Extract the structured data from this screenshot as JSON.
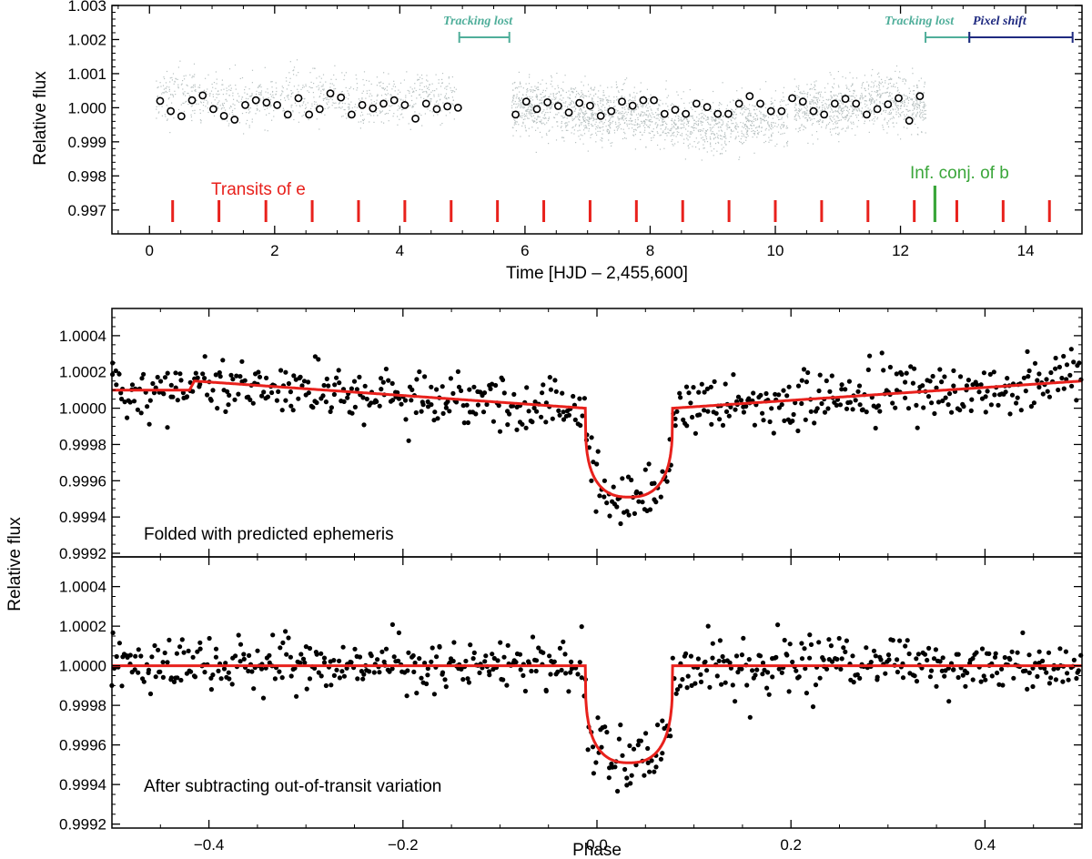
{
  "chart_data": [
    {
      "type": "scatter",
      "panel": "top",
      "xlabel": "Time [HJD – 2,455,600]",
      "ylabel": "Relative flux",
      "xlim": [
        -0.6,
        14.9
      ],
      "ylim": [
        0.9963,
        1.003
      ],
      "x_ticks": [
        0,
        2,
        4,
        6,
        8,
        10,
        12,
        14
      ],
      "x_tick_labels": [
        "0",
        "2",
        "4",
        "6",
        "8",
        "10",
        "12",
        "14"
      ],
      "y_ticks": [
        0.997,
        0.998,
        0.999,
        1.0,
        1.001,
        1.002,
        1.003
      ],
      "y_tick_labels": [
        "0.997",
        "0.998",
        "0.999",
        "1.000",
        "1.001",
        "1.002",
        "1.003"
      ],
      "colors": {
        "raw": "#b7c0c0",
        "binned": "#000000",
        "transit": "#e8211c",
        "conj": "#3aa63a",
        "tracking": "#4fae9a",
        "pixel": "#1f2a80"
      },
      "raw_segments": [
        {
          "x": [
            0.1,
            4.9
          ],
          "base": 1.0003
        },
        {
          "x": [
            5.78,
            7.72
          ],
          "base": 0.99995
        },
        {
          "x": [
            7.72,
            10.2
          ],
          "base": 0.9996
        },
        {
          "x": [
            10.3,
            12.4
          ],
          "base": 1.0001
        }
      ],
      "binned_points": {
        "x": [
          0.17,
          0.34,
          0.51,
          0.68,
          0.85,
          1.02,
          1.19,
          1.36,
          1.53,
          1.7,
          1.87,
          2.04,
          2.21,
          2.38,
          2.55,
          2.72,
          2.89,
          3.06,
          3.23,
          3.4,
          3.57,
          3.74,
          3.91,
          4.08,
          4.25,
          4.42,
          4.59,
          4.76,
          4.93,
          5.85,
          6.02,
          6.19,
          6.36,
          6.53,
          6.7,
          6.87,
          7.04,
          7.21,
          7.38,
          7.55,
          7.72,
          7.89,
          8.06,
          8.23,
          8.4,
          8.57,
          8.74,
          8.91,
          9.08,
          9.25,
          9.42,
          9.59,
          9.76,
          9.93,
          10.1,
          10.27,
          10.44,
          10.61,
          10.78,
          10.95,
          11.12,
          11.29,
          11.46,
          11.63,
          11.8,
          11.97,
          12.14,
          12.31
        ],
        "y": [
          1.0002,
          0.9999,
          0.99975,
          1.00022,
          1.00036,
          0.99996,
          0.99976,
          0.99965,
          1.00008,
          1.00022,
          1.00015,
          1.00008,
          0.9998,
          1.00028,
          0.9998,
          0.99996,
          1.00042,
          1.0003,
          0.9998,
          1.00008,
          0.99998,
          1.00012,
          1.00022,
          1.00008,
          0.99968,
          1.00012,
          0.99996,
          1.00004,
          1.0,
          0.9998,
          1.00018,
          0.99996,
          1.00016,
          1.00005,
          0.99986,
          1.00014,
          1.00006,
          0.99976,
          0.9999,
          1.00018,
          1.00006,
          1.00022,
          1.00022,
          0.99982,
          0.99994,
          0.99982,
          1.00012,
          1.00002,
          0.99982,
          0.99982,
          1.00012,
          1.00034,
          1.00012,
          0.9999,
          0.9999,
          1.00028,
          1.00018,
          0.9999,
          0.9998,
          1.00012,
          1.00026,
          1.00012,
          0.9998,
          0.99996,
          1.0001,
          1.00028,
          0.99962,
          1.00034
        ]
      },
      "transits_x": [
        0.37,
        1.11,
        1.86,
        2.6,
        3.34,
        4.08,
        4.82,
        5.56,
        6.3,
        7.04,
        7.78,
        8.52,
        9.26,
        10.0,
        10.74,
        11.48,
        12.22,
        12.9,
        13.64,
        14.38
      ],
      "conj_x": 12.55,
      "annotations": {
        "transits_label": "Transits of e",
        "conj_label": "Inf. conj. of b",
        "tracking1": {
          "label": "Tracking lost",
          "x": [
            4.95,
            5.75
          ]
        },
        "tracking2": {
          "label": "Tracking lost",
          "x": [
            12.4,
            13.1
          ]
        },
        "pixel_shift": {
          "label": "Pixel shift",
          "x": [
            13.1,
            14.75
          ]
        }
      }
    },
    {
      "type": "scatter",
      "panel": "middle",
      "xlim": [
        -0.5,
        0.5
      ],
      "ylim": [
        0.99918,
        1.00055
      ],
      "y_ticks": [
        0.9992,
        0.9994,
        0.9996,
        0.9998,
        1.0,
        1.0002,
        1.0004
      ],
      "y_tick_labels": [
        "0.9992",
        "0.9994",
        "0.9996",
        "0.9998",
        "1.0000",
        "1.0002",
        "1.0004"
      ],
      "label": "Folded with predicted ephemeris",
      "model": {
        "ingress": -0.012,
        "egress": 0.078,
        "depth": 0.00049,
        "out_of_transit": [
          [
            -0.5,
            1.0001
          ],
          [
            -0.42,
            1.0001
          ],
          [
            -0.415,
            1.00015
          ],
          [
            -0.012,
            1.0
          ],
          [
            0.078,
            1.0
          ],
          [
            0.5,
            1.00015
          ]
        ]
      }
    },
    {
      "type": "scatter",
      "panel": "bottom",
      "xlim": [
        -0.5,
        0.5
      ],
      "ylim": [
        0.99918,
        1.00055
      ],
      "y_ticks": [
        0.9992,
        0.9994,
        0.9996,
        0.9998,
        1.0,
        1.0002,
        1.0004
      ],
      "y_tick_labels": [
        "0.9992",
        "0.9994",
        "0.9996",
        "0.9998",
        "1.0000",
        "1.0002",
        "1.0004"
      ],
      "x_ticks": [
        -0.4,
        -0.2,
        0.0,
        0.2,
        0.4
      ],
      "x_tick_labels": [
        "−0.4",
        "−0.2",
        "0.0",
        "0.2",
        "0.4"
      ],
      "xlabel": "Phase",
      "ylabel": "Relative flux",
      "label": "After subtracting out-of-transit variation",
      "model": {
        "ingress": -0.012,
        "egress": 0.078,
        "depth": 0.00049,
        "out_of_transit": [
          [
            -0.5,
            1.0
          ],
          [
            0.5,
            1.0
          ]
        ]
      }
    }
  ]
}
